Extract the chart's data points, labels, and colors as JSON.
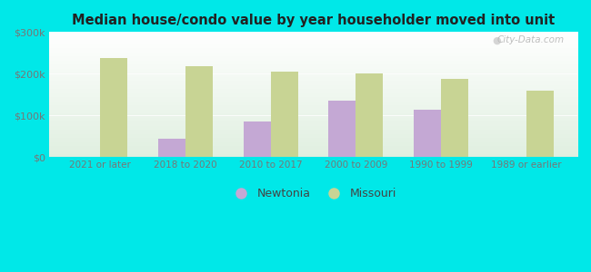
{
  "title": "Median house/condo value by year householder moved into unit",
  "categories": [
    "2021 or later",
    "2018 to 2020",
    "2010 to 2017",
    "2000 to 2009",
    "1990 to 1999",
    "1989 or earlier"
  ],
  "newtonia_values": [
    null,
    45000,
    85000,
    135000,
    113000,
    null
  ],
  "missouri_values": [
    238000,
    218000,
    205000,
    200000,
    188000,
    160000
  ],
  "newtonia_color": "#c4a8d4",
  "missouri_color": "#c8d494",
  "background_color": "#00e8e8",
  "ylabel_ticks": [
    "$0",
    "$100k",
    "$200k",
    "$300k"
  ],
  "ytick_values": [
    0,
    100000,
    200000,
    300000
  ],
  "ylim": [
    0,
    300000
  ],
  "bar_width": 0.32,
  "watermark": "City-Data.com",
  "legend_newtonia": "Newtonia",
  "legend_missouri": "Missouri",
  "tick_color": "#777777",
  "grid_color": "#dddddd"
}
